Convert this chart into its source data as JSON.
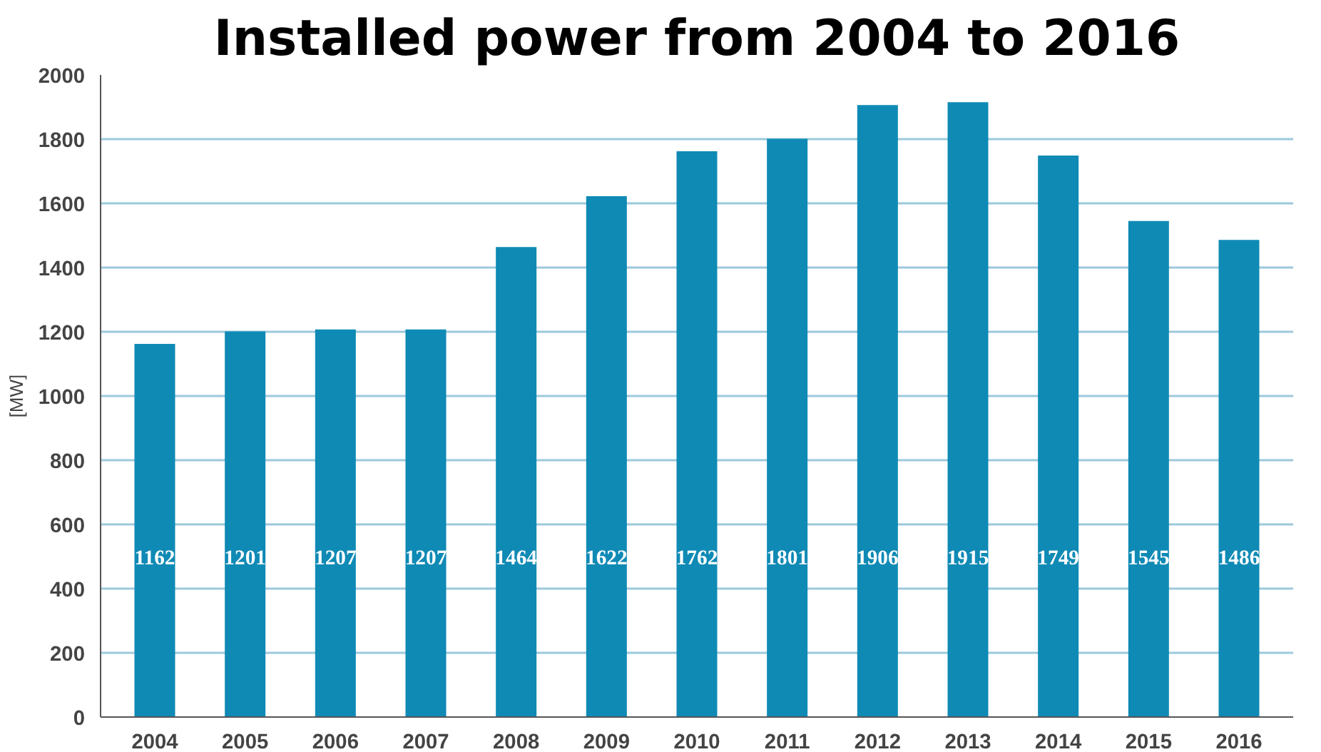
{
  "chart_data": {
    "type": "bar",
    "title": "Installed power from 2004 to 2016",
    "ylabel": "[MW]",
    "categories": [
      "2004",
      "2005",
      "2006",
      "2007",
      "2008",
      "2009",
      "2010",
      "2011",
      "2012",
      "2013",
      "2014",
      "2015",
      "2016"
    ],
    "values": [
      1162,
      1201,
      1207,
      1207,
      1464,
      1622,
      1762,
      1801,
      1906,
      1915,
      1749,
      1545,
      1486
    ],
    "color": "#0f8ab5",
    "ylim": [
      0,
      2000
    ],
    "yticks": [
      0,
      200,
      400,
      600,
      800,
      1000,
      1200,
      1400,
      1600,
      1800,
      2000
    ],
    "grid": "y",
    "data_labels": true
  }
}
